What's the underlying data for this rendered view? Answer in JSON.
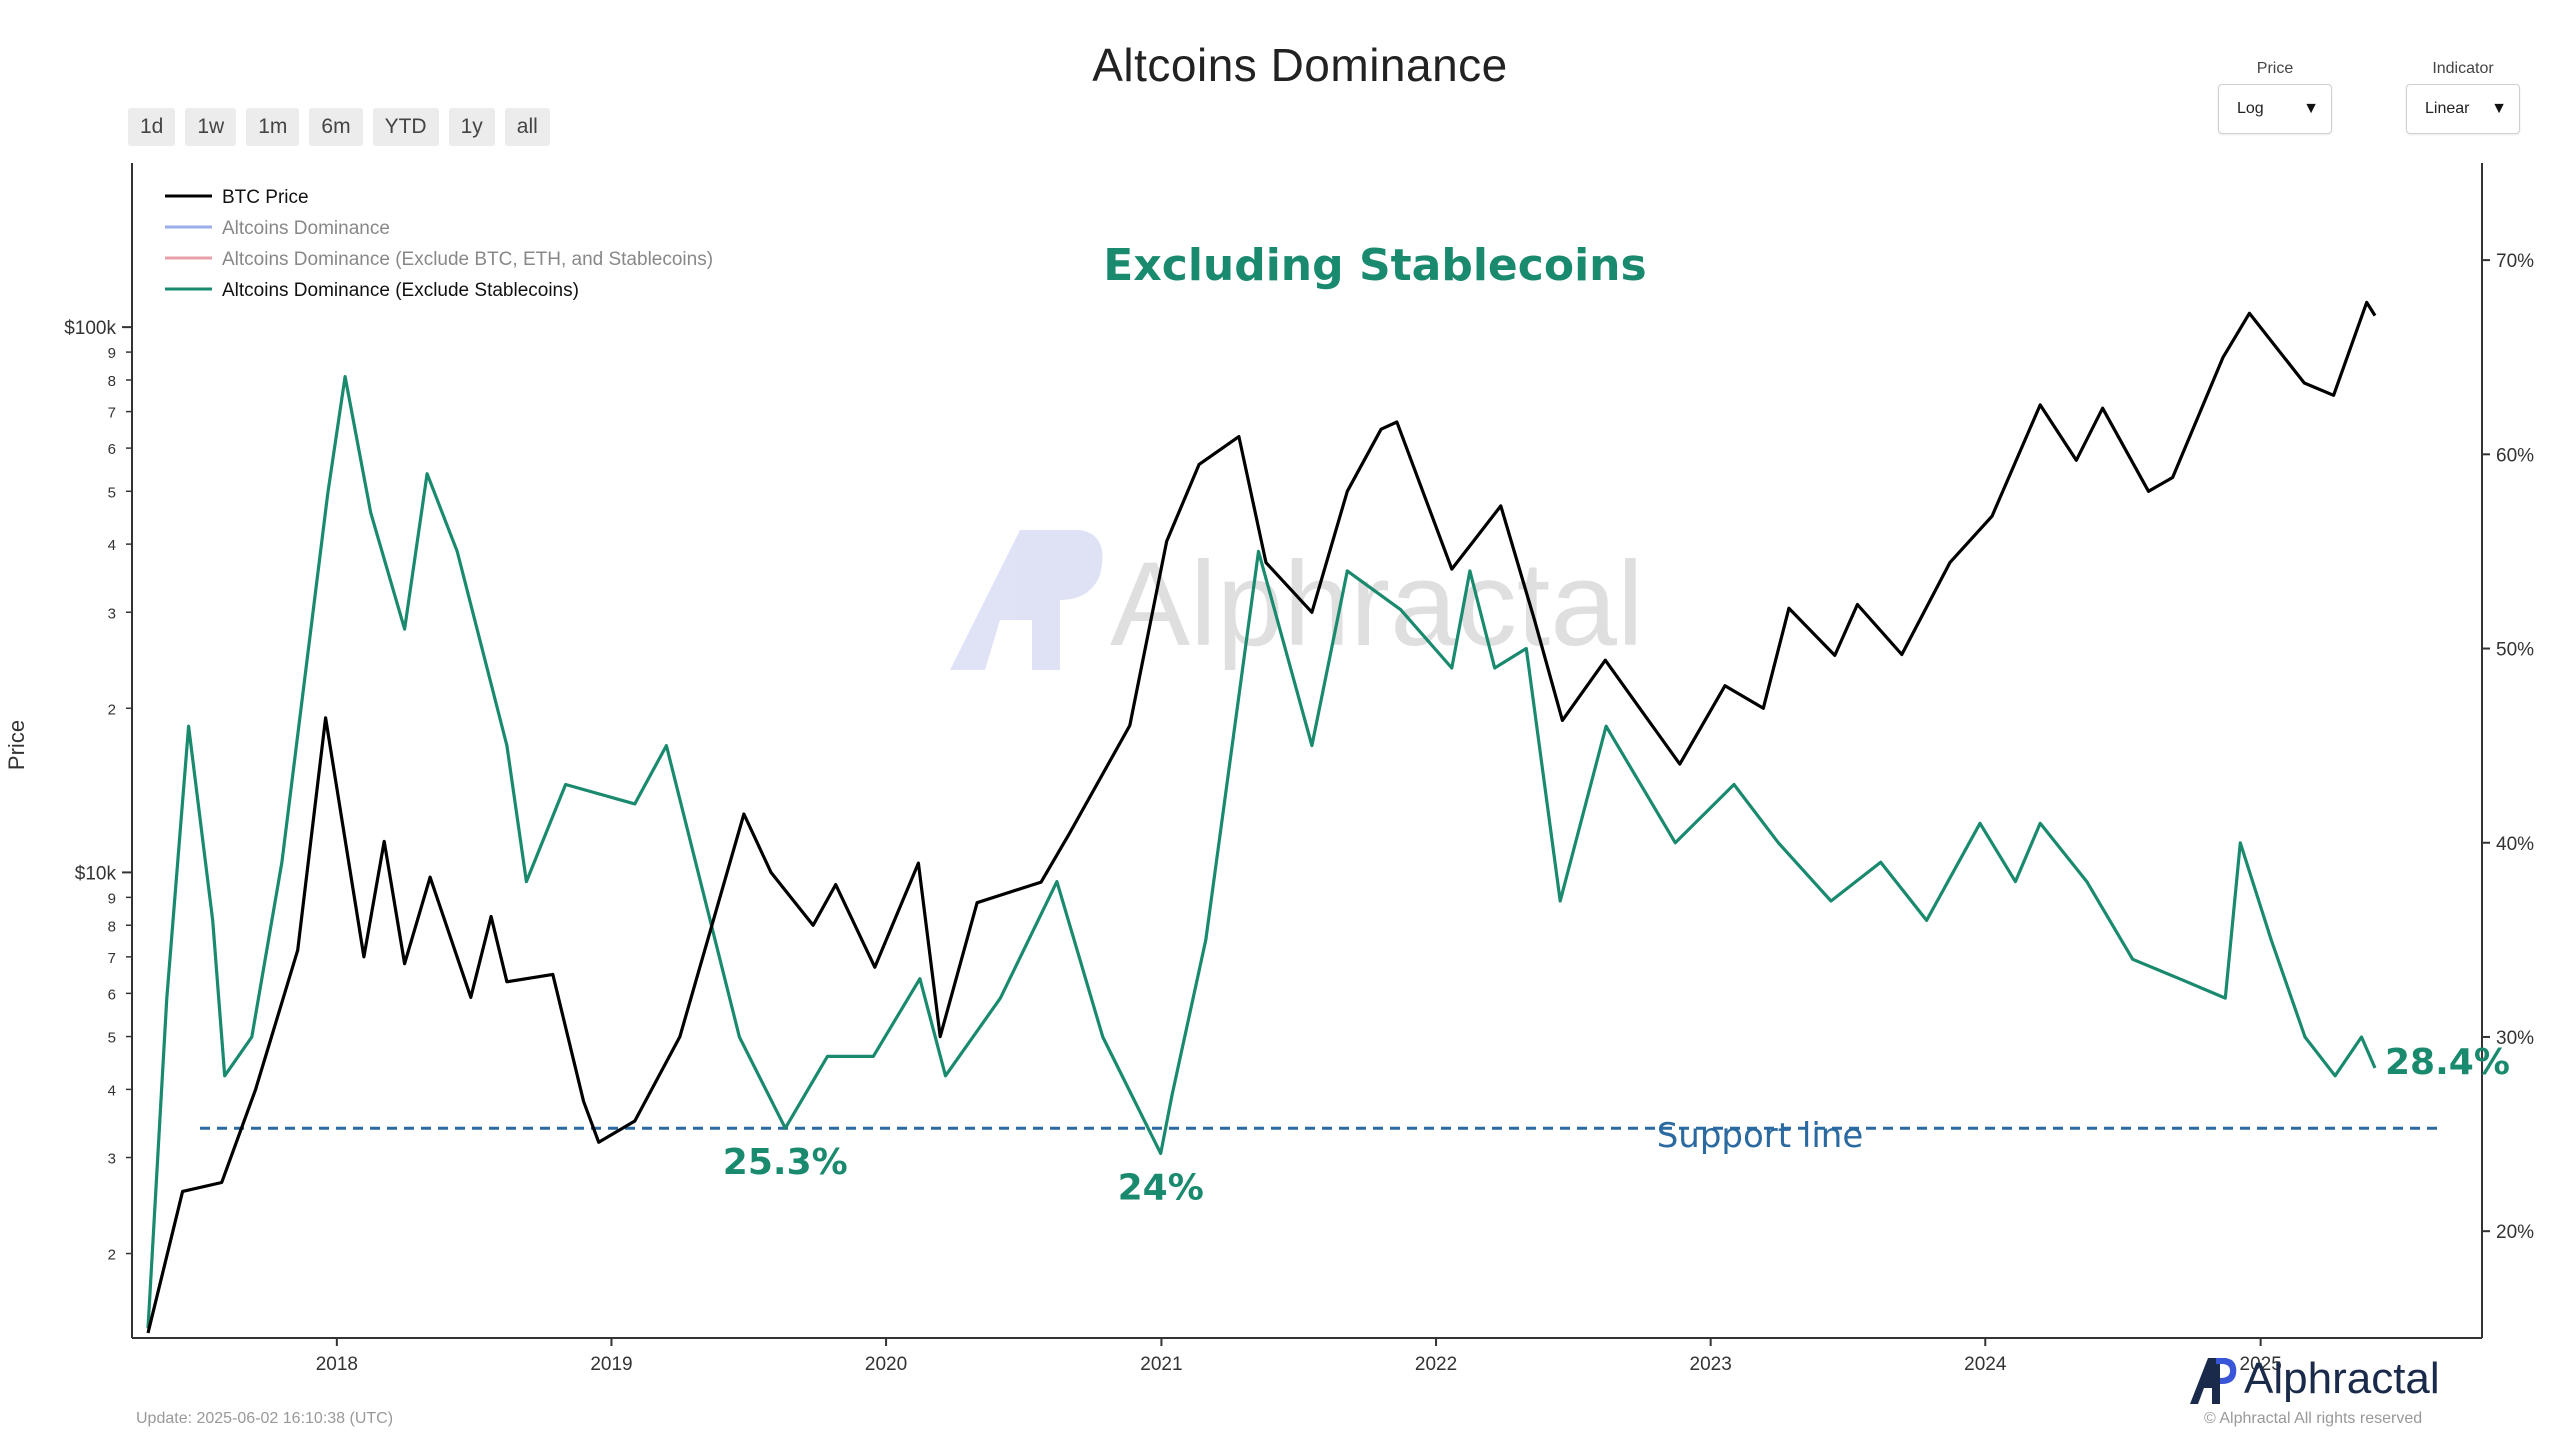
{
  "title": "Altcoins Dominance",
  "range_buttons": [
    "1d",
    "1w",
    "1m",
    "6m",
    "YTD",
    "1y",
    "all"
  ],
  "price_select": {
    "label": "Price",
    "value": "Log"
  },
  "indicator_select": {
    "label": "Indicator",
    "value": "Linear"
  },
  "update_text": "Update: 2025-06-02 16:10:38 (UTC)",
  "logo_text": "Alphractal",
  "copyright": "© Alphractal All rights reserved",
  "watermark": "Alphractal",
  "colors": {
    "btc": "#000000",
    "alt_excl_stable": "#1a8a6e",
    "alt_dominance": "#9aaee8",
    "alt_excl_btc_eth": "#e8a0a8",
    "support": "#2a6aa0",
    "annotation": "#1a8a6e"
  },
  "chart_data": {
    "type": "line",
    "title": "Altcoins Dominance",
    "subtitle": "Excluding Stablecoins",
    "ylabel_left": "Price",
    "left_axis": {
      "scale": "log",
      "range": [
        1400,
        200000
      ]
    },
    "right_axis": {
      "scale": "linear",
      "unit": "%",
      "range": [
        14.5,
        75
      ]
    },
    "x_ticks": [
      "2018",
      "2019",
      "2020",
      "2021",
      "2022",
      "2023",
      "2024",
      "2025"
    ],
    "y_left_major_ticks": [
      {
        "value": 10000,
        "label": "$10k"
      },
      {
        "value": 100000,
        "label": "$100k"
      }
    ],
    "y_left_minor_ticks": [
      {
        "value": 2000,
        "label": "2"
      },
      {
        "value": 3000,
        "label": "3"
      },
      {
        "value": 4000,
        "label": "4"
      },
      {
        "value": 5000,
        "label": "5"
      },
      {
        "value": 6000,
        "label": "6"
      },
      {
        "value": 7000,
        "label": "7"
      },
      {
        "value": 8000,
        "label": "8"
      },
      {
        "value": 9000,
        "label": "9"
      },
      {
        "value": 20000,
        "label": "2"
      },
      {
        "value": 30000,
        "label": "3"
      },
      {
        "value": 40000,
        "label": "4"
      },
      {
        "value": 50000,
        "label": "5"
      },
      {
        "value": 60000,
        "label": "6"
      },
      {
        "value": 70000,
        "label": "7"
      },
      {
        "value": 80000,
        "label": "8"
      },
      {
        "value": 90000,
        "label": "9"
      }
    ],
    "y_right_ticks": [
      {
        "value": 20,
        "label": "20%"
      },
      {
        "value": 30,
        "label": "30%"
      },
      {
        "value": 40,
        "label": "40%"
      },
      {
        "value": 50,
        "label": "50%"
      },
      {
        "value": 60,
        "label": "60%"
      },
      {
        "value": 70,
        "label": "70%"
      }
    ],
    "legend": [
      {
        "name": "BTC Price",
        "color": "#000000",
        "active": true
      },
      {
        "name": "Altcoins Dominance",
        "color": "#9aaee8",
        "active": false
      },
      {
        "name": "Altcoins Dominance (Exclude BTC, ETH, and Stablecoins)",
        "color": "#e8a0a8",
        "active": false
      },
      {
        "name": "Altcoins Dominance (Exclude Stablecoins)",
        "color": "#1a8a6e",
        "active": true
      }
    ],
    "series": [
      {
        "name": "BTC Price",
        "axis": "left",
        "color": "#000000",
        "points": [
          [
            "2017-04-25",
            1430
          ],
          [
            "2017-06-10",
            2600
          ],
          [
            "2017-08-01",
            2700
          ],
          [
            "2017-09-15",
            4000
          ],
          [
            "2017-11-10",
            7200
          ],
          [
            "2017-12-17",
            19200
          ],
          [
            "2018-02-06",
            7000
          ],
          [
            "2018-03-05",
            11400
          ],
          [
            "2018-04-01",
            6800
          ],
          [
            "2018-05-05",
            9800
          ],
          [
            "2018-06-28",
            5900
          ],
          [
            "2018-07-25",
            8300
          ],
          [
            "2018-08-15",
            6300
          ],
          [
            "2018-10-15",
            6500
          ],
          [
            "2018-11-25",
            3800
          ],
          [
            "2018-12-15",
            3200
          ],
          [
            "2019-02-01",
            3500
          ],
          [
            "2019-04-02",
            5000
          ],
          [
            "2019-06-26",
            12800
          ],
          [
            "2019-08-01",
            10000
          ],
          [
            "2019-09-26",
            8000
          ],
          [
            "2019-10-26",
            9500
          ],
          [
            "2019-12-17",
            6700
          ],
          [
            "2020-02-13",
            10400
          ],
          [
            "2020-03-13",
            5000
          ],
          [
            "2020-05-01",
            8800
          ],
          [
            "2020-07-25",
            9600
          ],
          [
            "2020-09-01",
            11800
          ],
          [
            "2020-11-20",
            18600
          ],
          [
            "2021-01-08",
            40500
          ],
          [
            "2021-02-20",
            56000
          ],
          [
            "2021-04-14",
            63000
          ],
          [
            "2021-05-20",
            37000
          ],
          [
            "2021-07-20",
            30000
          ],
          [
            "2021-09-05",
            50000
          ],
          [
            "2021-10-20",
            65000
          ],
          [
            "2021-11-10",
            67000
          ],
          [
            "2022-01-22",
            36000
          ],
          [
            "2022-03-28",
            47000
          ],
          [
            "2022-05-12",
            29000
          ],
          [
            "2022-06-18",
            19000
          ],
          [
            "2022-08-14",
            24500
          ],
          [
            "2022-11-21",
            15800
          ],
          [
            "2023-01-20",
            22000
          ],
          [
            "2023-03-12",
            20000
          ],
          [
            "2023-04-15",
            30500
          ],
          [
            "2023-06-15",
            25000
          ],
          [
            "2023-07-15",
            31000
          ],
          [
            "2023-09-12",
            25100
          ],
          [
            "2023-11-15",
            37000
          ],
          [
            "2024-01-10",
            45000
          ],
          [
            "2024-03-14",
            72000
          ],
          [
            "2024-05-01",
            57000
          ],
          [
            "2024-06-05",
            71000
          ],
          [
            "2024-08-05",
            50000
          ],
          [
            "2024-09-06",
            53000
          ],
          [
            "2024-11-12",
            88000
          ],
          [
            "2024-12-17",
            106000
          ],
          [
            "2025-02-28",
            79000
          ],
          [
            "2025-04-08",
            75000
          ],
          [
            "2025-05-22",
            111000
          ],
          [
            "2025-06-02",
            105000
          ]
        ]
      },
      {
        "name": "Altcoins Dominance (Exclude Stablecoins)",
        "axis": "right",
        "color": "#1a8a6e",
        "points": [
          [
            "2017-04-25",
            15
          ],
          [
            "2017-05-20",
            32
          ],
          [
            "2017-06-18",
            46
          ],
          [
            "2017-07-20",
            36
          ],
          [
            "2017-08-05",
            28
          ],
          [
            "2017-09-10",
            30
          ],
          [
            "2017-10-20",
            39
          ],
          [
            "2017-12-20",
            58
          ],
          [
            "2018-01-12",
            64
          ],
          [
            "2018-02-15",
            57
          ],
          [
            "2018-04-01",
            51
          ],
          [
            "2018-05-01",
            59
          ],
          [
            "2018-06-10",
            55
          ],
          [
            "2018-08-15",
            45
          ],
          [
            "2018-09-10",
            38
          ],
          [
            "2018-11-01",
            43
          ],
          [
            "2019-02-01",
            42
          ],
          [
            "2019-03-15",
            45
          ],
          [
            "2019-06-20",
            30
          ],
          [
            "2019-08-20",
            25.3
          ],
          [
            "2019-10-15",
            29
          ],
          [
            "2019-12-15",
            29
          ],
          [
            "2020-02-15",
            33
          ],
          [
            "2020-03-20",
            28
          ],
          [
            "2020-06-01",
            32
          ],
          [
            "2020-08-15",
            38
          ],
          [
            "2020-10-15",
            30
          ],
          [
            "2020-12-31",
            24
          ],
          [
            "2021-01-15",
            27
          ],
          [
            "2021-03-01",
            35
          ],
          [
            "2021-05-10",
            55
          ],
          [
            "2021-07-20",
            45
          ],
          [
            "2021-09-05",
            54
          ],
          [
            "2021-11-15",
            52
          ],
          [
            "2022-01-22",
            49
          ],
          [
            "2022-02-15",
            54
          ],
          [
            "2022-03-20",
            49
          ],
          [
            "2022-05-01",
            50
          ],
          [
            "2022-06-15",
            37
          ],
          [
            "2022-08-15",
            46
          ],
          [
            "2022-11-15",
            40
          ],
          [
            "2023-02-01",
            43
          ],
          [
            "2023-04-01",
            40
          ],
          [
            "2023-06-10",
            37
          ],
          [
            "2023-08-15",
            39
          ],
          [
            "2023-10-15",
            36
          ],
          [
            "2023-12-25",
            41
          ],
          [
            "2024-02-10",
            38
          ],
          [
            "2024-03-14",
            41
          ],
          [
            "2024-05-15",
            38
          ],
          [
            "2024-07-15",
            34
          ],
          [
            "2024-09-15",
            33
          ],
          [
            "2024-11-15",
            32
          ],
          [
            "2024-12-05",
            40
          ],
          [
            "2025-01-15",
            35
          ],
          [
            "2025-03-01",
            30
          ],
          [
            "2025-04-10",
            28
          ],
          [
            "2025-05-15",
            30
          ],
          [
            "2025-06-02",
            28.4
          ]
        ]
      }
    ],
    "support_line": {
      "label": "Support line",
      "value": 25.3,
      "style": "dashed"
    },
    "annotations": [
      {
        "text": "25.3%",
        "x": "2019-08-20",
        "y": 25.3
      },
      {
        "text": "24%",
        "x": "2020-12-31",
        "y": 24
      },
      {
        "text": "28.4%",
        "x": "2025-06-02",
        "y": 28.4
      }
    ]
  }
}
